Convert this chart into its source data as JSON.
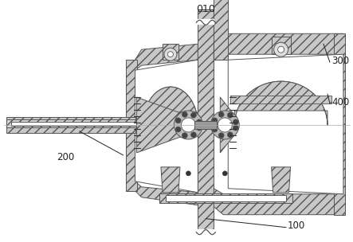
{
  "bg_color": "#ffffff",
  "line_color": "#555555",
  "dark_color": "#333333",
  "hatch_fill": "#c8c8c8",
  "label_010": "010",
  "label_100": "100",
  "label_200": "200",
  "label_300": "300",
  "label_400": "400",
  "figsize": [
    4.43,
    3.04
  ],
  "dpi": 100
}
